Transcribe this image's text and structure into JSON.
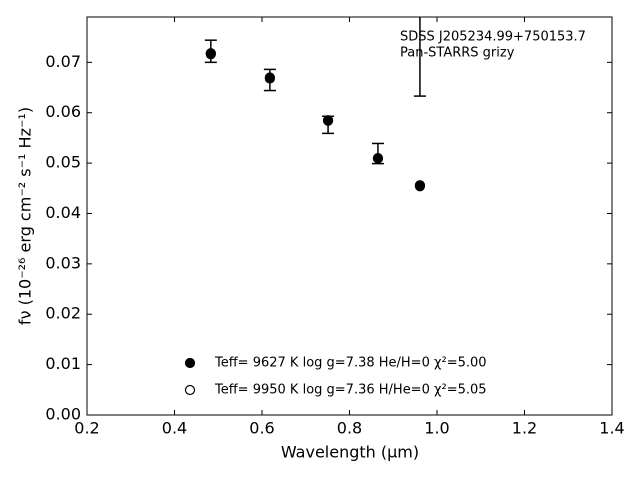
{
  "chart_data": {
    "type": "scatter",
    "annotation": [
      "SDSS J205234.99+750153.7",
      "Pan-STARRS grizy"
    ],
    "xlabel": "Wavelength (μm)",
    "ylabel": "fν (10⁻²⁶ erg cm⁻² s⁻¹ Hz⁻¹)",
    "xlim": [
      0.2,
      1.4
    ],
    "xticks": [
      0.2,
      0.4,
      0.6,
      0.8,
      {
        "value": 1.0,
        "label": "1.0"
      },
      1.2,
      1.4
    ],
    "ylim": [
      0,
      0.079
    ],
    "yticks": [
      {
        "value": 0,
        "label": "0.00"
      },
      {
        "value": 0.01,
        "label": "0.01"
      },
      {
        "value": 0.02,
        "label": "0.02"
      },
      {
        "value": 0.03,
        "label": "0.03"
      },
      {
        "value": 0.04,
        "label": "0.04"
      },
      {
        "value": 0.05,
        "label": "0.05"
      },
      {
        "value": 0.06,
        "label": "0.06"
      },
      {
        "value": 0.07,
        "label": "0.07"
      }
    ],
    "series": [
      {
        "name": "Teff=  9950 K  log g=7.36  H/He=0  χ²=5.05",
        "color": "#000000",
        "marker": "open",
        "x": [
          0.483,
          0.618,
          0.751,
          0.865,
          0.961
        ],
        "values": [
          0.0716,
          0.0668,
          0.0584,
          0.0509,
          0.0454
        ]
      },
      {
        "name": "Teff=  9627 K  log g=7.38  He/H=0  χ²=5.00",
        "color": "#000000",
        "marker": "filled",
        "x": [
          0.483,
          0.618,
          0.751,
          0.865,
          0.961
        ],
        "values": [
          0.0718,
          0.067,
          0.0585,
          0.051,
          0.0456
        ]
      }
    ],
    "errorbars": {
      "x": [
        0.483,
        0.618,
        0.751,
        0.865,
        0.961
      ],
      "center": [
        0.0722,
        0.0665,
        0.0576,
        0.0519,
        0.0803
      ],
      "err": [
        0.0022,
        0.0021,
        0.0017,
        0.002,
        0.017
      ]
    }
  }
}
